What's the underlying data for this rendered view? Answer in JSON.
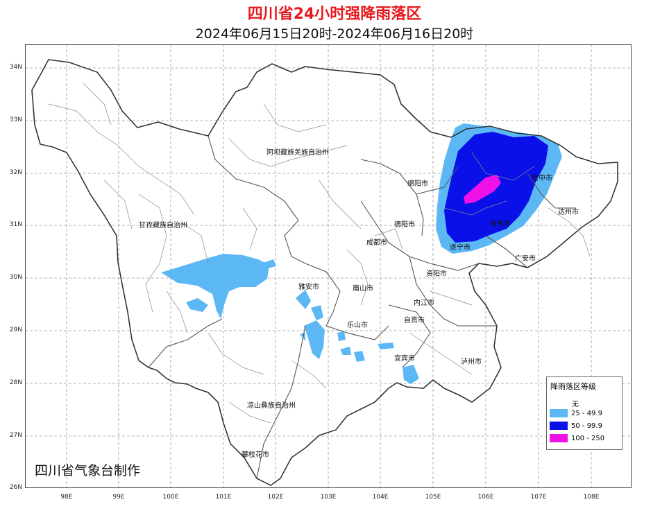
{
  "title": "四川省24小时强降雨落区",
  "subtitle": "2024年06月15日20时-2024年06月16日20时",
  "credit": "四川省气象台制作",
  "axes": {
    "lat_labels": [
      "34N",
      "33N",
      "32N",
      "31N",
      "30N",
      "29N",
      "28N",
      "27N",
      "26N"
    ],
    "lon_labels": [
      "98E",
      "99E",
      "100E",
      "101E",
      "102E",
      "103E",
      "104E",
      "105E",
      "106E",
      "107E",
      "108E"
    ]
  },
  "cities": [
    {
      "name": "阿坝藏族羌族自治州"
    },
    {
      "name": "甘孜藏族自治州"
    },
    {
      "name": "绵阳市"
    },
    {
      "name": "巴中市"
    },
    {
      "name": "达州市"
    },
    {
      "name": "德阳市"
    },
    {
      "name": "成都市"
    },
    {
      "name": "遂宁市"
    },
    {
      "name": "南充市"
    },
    {
      "name": "广安市"
    },
    {
      "name": "资阳市"
    },
    {
      "name": "雅安市"
    },
    {
      "name": "眉山市"
    },
    {
      "name": "内江市"
    },
    {
      "name": "自贡市"
    },
    {
      "name": "乐山市"
    },
    {
      "name": "宜宾市"
    },
    {
      "name": "泸州市"
    },
    {
      "name": "凉山彝族自治州"
    },
    {
      "name": "攀枝花市"
    }
  ],
  "legend": {
    "title": "降雨落区等级",
    "items": [
      {
        "label": "无",
        "color": "#ffffff"
      },
      {
        "label": "25 - 49.9",
        "color": "#5cb8f5"
      },
      {
        "label": "50 - 99.9",
        "color": "#0a10e8"
      },
      {
        "label": "100 - 250",
        "color": "#f010e8"
      }
    ]
  },
  "colors": {
    "light": "#5cb8f5",
    "blue": "#0a10e8",
    "magenta": "#f010e8",
    "title": "#e8191c"
  }
}
